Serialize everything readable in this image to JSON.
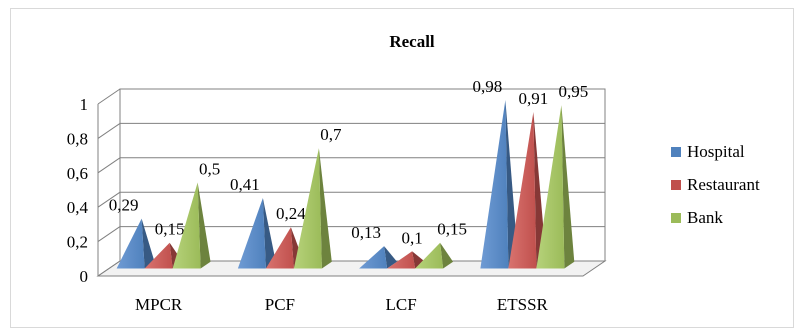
{
  "chart_data": {
    "type": "bar",
    "style": "3d-pyramid",
    "title": "Recall",
    "categories": [
      "MPCR",
      "PCF",
      "LCF",
      "ETSSR"
    ],
    "series": [
      {
        "name": "Hospital",
        "values": [
          0.29,
          0.41,
          0.13,
          0.98
        ],
        "labels": [
          "0,29",
          "0,41",
          "0,13",
          "0,98"
        ]
      },
      {
        "name": "Restaurant",
        "values": [
          0.15,
          0.24,
          0.1,
          0.91
        ],
        "labels": [
          "0,15",
          "0,24",
          "0,1",
          "0,91"
        ]
      },
      {
        "name": "Bank",
        "values": [
          0.5,
          0.7,
          0.15,
          0.95
        ],
        "labels": [
          "0,5",
          "0,7",
          "0,15",
          "0,95"
        ]
      }
    ],
    "yticks": [
      "0",
      "0,2",
      "0,4",
      "0,6",
      "0,8",
      "1"
    ],
    "ylim": [
      0,
      1
    ],
    "grid": true,
    "legend_position": "right"
  },
  "colors": {
    "Hospital": "#4f81bd",
    "Restaurant": "#c0504d",
    "Bank": "#9bbb59",
    "grid": "#808080",
    "axis": "#808080"
  }
}
